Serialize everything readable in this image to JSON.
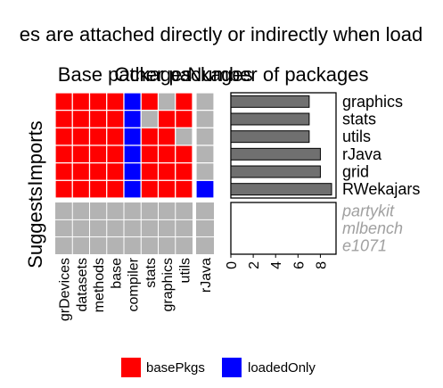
{
  "chart_data": {
    "type": "heatmap",
    "title": "es are attached directly or indirectly when load",
    "panel_titles": {
      "base": "Base packages",
      "other": "Other packages",
      "number": "Number of packages"
    },
    "row_groups": [
      "Imports",
      "Suggests"
    ],
    "imports_rows": [
      "graphics",
      "stats",
      "utils",
      "rJava",
      "grid",
      "RWekajars"
    ],
    "suggests_rows": [
      "partykit",
      "mlbench",
      "e1071"
    ],
    "base_columns": [
      "grDevices",
      "datasets",
      "methods",
      "base",
      "compiler",
      "stats",
      "graphics",
      "utils"
    ],
    "other_columns": [
      "rJava"
    ],
    "base_matrix": [
      [
        "basePkgs",
        "basePkgs",
        "basePkgs",
        "basePkgs",
        "loadedOnly",
        "basePkgs",
        "none",
        "basePkgs"
      ],
      [
        "basePkgs",
        "basePkgs",
        "basePkgs",
        "basePkgs",
        "loadedOnly",
        "none",
        "basePkgs",
        "basePkgs"
      ],
      [
        "basePkgs",
        "basePkgs",
        "basePkgs",
        "basePkgs",
        "loadedOnly",
        "basePkgs",
        "basePkgs",
        "none"
      ],
      [
        "basePkgs",
        "basePkgs",
        "basePkgs",
        "basePkgs",
        "loadedOnly",
        "basePkgs",
        "basePkgs",
        "basePkgs"
      ],
      [
        "basePkgs",
        "basePkgs",
        "basePkgs",
        "basePkgs",
        "loadedOnly",
        "basePkgs",
        "basePkgs",
        "basePkgs"
      ],
      [
        "basePkgs",
        "basePkgs",
        "basePkgs",
        "basePkgs",
        "loadedOnly",
        "basePkgs",
        "basePkgs",
        "basePkgs"
      ]
    ],
    "other_matrix": [
      [
        "none"
      ],
      [
        "none"
      ],
      [
        "none"
      ],
      [
        "none"
      ],
      [
        "none"
      ],
      [
        "loadedOnly"
      ]
    ],
    "counts": [
      7,
      7,
      7,
      8,
      8,
      9
    ],
    "suggests_counts": [
      0,
      0,
      0
    ],
    "count_axis": {
      "ticks": [
        "0",
        "2",
        "4",
        "6",
        "8"
      ],
      "max": 9.4
    },
    "legend": [
      {
        "key": "basePkgs",
        "label": "basePkgs"
      },
      {
        "key": "loadedOnly",
        "label": "loadedOnly"
      }
    ],
    "colors": {
      "basePkgs": "#ff0000",
      "loadedOnly": "#0000ff",
      "none": "#b3b3b3",
      "bar_fill": "#707070",
      "muted_label": "#a0a0a0",
      "panel_bg": "#b3b3b3"
    }
  }
}
